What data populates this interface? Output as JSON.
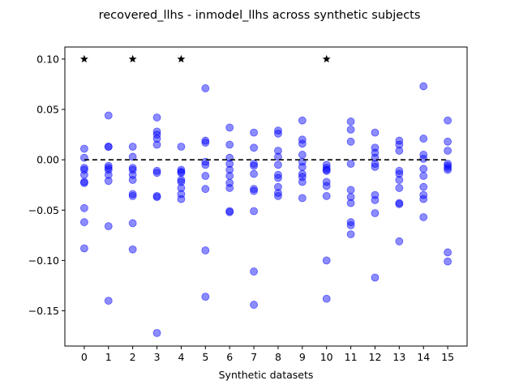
{
  "chart_data": {
    "type": "scatter",
    "title": "recovered_llhs - inmodel_llhs across synthetic subjects",
    "xlabel": "Synthetic datasets",
    "ylabel": "",
    "xlim": [
      -0.8,
      15.8
    ],
    "ylim": [
      -0.185,
      0.112
    ],
    "xticks": [
      0,
      1,
      2,
      3,
      4,
      5,
      6,
      7,
      8,
      9,
      10,
      11,
      12,
      13,
      14,
      15
    ],
    "yticks": [
      0.1,
      0.05,
      0.0,
      -0.05,
      -0.1,
      -0.15
    ],
    "ytick_labels": [
      "0.10",
      "0.05",
      "0.00",
      "−0.05",
      "−0.10",
      "−0.15"
    ],
    "grid": false,
    "reference_line": {
      "y": 0,
      "style": "dashed",
      "color": "#000000"
    },
    "star_markers": {
      "x": [
        0,
        2,
        4,
        10
      ],
      "y": 0.1,
      "color": "#000000"
    },
    "point_color": "#0000ff",
    "point_alpha": 0.45,
    "points": [
      [
        0,
        0.011
      ],
      [
        0,
        0.002
      ],
      [
        0,
        -0.008
      ],
      [
        0,
        -0.01
      ],
      [
        0,
        -0.015
      ],
      [
        0,
        -0.022
      ],
      [
        0,
        -0.023
      ],
      [
        0,
        -0.048
      ],
      [
        0,
        -0.062
      ],
      [
        0,
        -0.088
      ],
      [
        1,
        0.044
      ],
      [
        1,
        0.013
      ],
      [
        1,
        0.013
      ],
      [
        1,
        -0.006
      ],
      [
        1,
        -0.008
      ],
      [
        1,
        -0.01
      ],
      [
        1,
        -0.015
      ],
      [
        1,
        -0.021
      ],
      [
        1,
        -0.066
      ],
      [
        1,
        -0.14
      ],
      [
        2,
        0.013
      ],
      [
        2,
        0.003
      ],
      [
        2,
        -0.008
      ],
      [
        2,
        -0.01
      ],
      [
        2,
        -0.015
      ],
      [
        2,
        -0.02
      ],
      [
        2,
        -0.034
      ],
      [
        2,
        -0.036
      ],
      [
        2,
        -0.063
      ],
      [
        2,
        -0.089
      ],
      [
        3,
        0.042
      ],
      [
        3,
        0.028
      ],
      [
        3,
        0.025
      ],
      [
        3,
        0.021
      ],
      [
        3,
        0.015
      ],
      [
        3,
        -0.011
      ],
      [
        3,
        -0.013
      ],
      [
        3,
        -0.036
      ],
      [
        3,
        -0.037
      ],
      [
        3,
        -0.172
      ],
      [
        4,
        0.013
      ],
      [
        4,
        -0.01
      ],
      [
        4,
        -0.012
      ],
      [
        4,
        -0.013
      ],
      [
        4,
        -0.02
      ],
      [
        4,
        -0.022
      ],
      [
        4,
        -0.028
      ],
      [
        4,
        -0.034
      ],
      [
        4,
        -0.039
      ],
      [
        5,
        0.071
      ],
      [
        5,
        0.019
      ],
      [
        5,
        0.017
      ],
      [
        5,
        -0.002
      ],
      [
        5,
        -0.005
      ],
      [
        5,
        -0.016
      ],
      [
        5,
        -0.029
      ],
      [
        5,
        -0.09
      ],
      [
        5,
        -0.136
      ],
      [
        6,
        0.032
      ],
      [
        6,
        0.015
      ],
      [
        6,
        0.002
      ],
      [
        6,
        -0.004
      ],
      [
        6,
        -0.01
      ],
      [
        6,
        -0.016
      ],
      [
        6,
        -0.023
      ],
      [
        6,
        -0.028
      ],
      [
        6,
        -0.051
      ],
      [
        6,
        -0.052
      ],
      [
        7,
        0.027
      ],
      [
        7,
        0.012
      ],
      [
        7,
        -0.004
      ],
      [
        7,
        -0.006
      ],
      [
        7,
        -0.014
      ],
      [
        7,
        -0.029
      ],
      [
        7,
        -0.031
      ],
      [
        7,
        -0.051
      ],
      [
        7,
        -0.111
      ],
      [
        7,
        -0.144
      ],
      [
        8,
        0.029
      ],
      [
        8,
        0.026
      ],
      [
        8,
        0.009
      ],
      [
        8,
        0.003
      ],
      [
        8,
        -0.005
      ],
      [
        8,
        -0.015
      ],
      [
        8,
        -0.018
      ],
      [
        8,
        -0.027
      ],
      [
        8,
        -0.033
      ],
      [
        8,
        -0.036
      ],
      [
        9,
        0.039
      ],
      [
        9,
        0.02
      ],
      [
        9,
        0.016
      ],
      [
        9,
        0.005
      ],
      [
        9,
        -0.002
      ],
      [
        9,
        -0.007
      ],
      [
        9,
        -0.014
      ],
      [
        9,
        -0.017
      ],
      [
        9,
        -0.022
      ],
      [
        9,
        -0.038
      ],
      [
        10,
        -0.005
      ],
      [
        10,
        -0.008
      ],
      [
        10,
        -0.01
      ],
      [
        10,
        -0.011
      ],
      [
        10,
        -0.022
      ],
      [
        10,
        -0.026
      ],
      [
        10,
        -0.036
      ],
      [
        10,
        -0.1
      ],
      [
        10,
        -0.138
      ],
      [
        11,
        0.038
      ],
      [
        11,
        0.03
      ],
      [
        11,
        0.018
      ],
      [
        11,
        -0.004
      ],
      [
        11,
        -0.03
      ],
      [
        11,
        -0.037
      ],
      [
        11,
        -0.043
      ],
      [
        11,
        -0.062
      ],
      [
        11,
        -0.065
      ],
      [
        11,
        -0.074
      ],
      [
        12,
        0.027
      ],
      [
        12,
        0.012
      ],
      [
        12,
        0.007
      ],
      [
        12,
        0.002
      ],
      [
        12,
        -0.004
      ],
      [
        12,
        -0.007
      ],
      [
        12,
        -0.035
      ],
      [
        12,
        -0.04
      ],
      [
        12,
        -0.053
      ],
      [
        12,
        -0.117
      ],
      [
        13,
        0.019
      ],
      [
        13,
        0.015
      ],
      [
        13,
        0.009
      ],
      [
        13,
        -0.011
      ],
      [
        13,
        -0.014
      ],
      [
        13,
        -0.02
      ],
      [
        13,
        -0.028
      ],
      [
        13,
        -0.043
      ],
      [
        13,
        -0.044
      ],
      [
        13,
        -0.081
      ],
      [
        14,
        0.073
      ],
      [
        14,
        0.021
      ],
      [
        14,
        0.005
      ],
      [
        14,
        0.001
      ],
      [
        14,
        -0.009
      ],
      [
        14,
        -0.016
      ],
      [
        14,
        -0.027
      ],
      [
        14,
        -0.035
      ],
      [
        14,
        -0.039
      ],
      [
        14,
        -0.057
      ],
      [
        15,
        0.039
      ],
      [
        15,
        0.018
      ],
      [
        15,
        0.009
      ],
      [
        15,
        -0.004
      ],
      [
        15,
        -0.006
      ],
      [
        15,
        -0.008
      ],
      [
        15,
        -0.01
      ],
      [
        15,
        -0.092
      ],
      [
        15,
        -0.101
      ]
    ]
  }
}
